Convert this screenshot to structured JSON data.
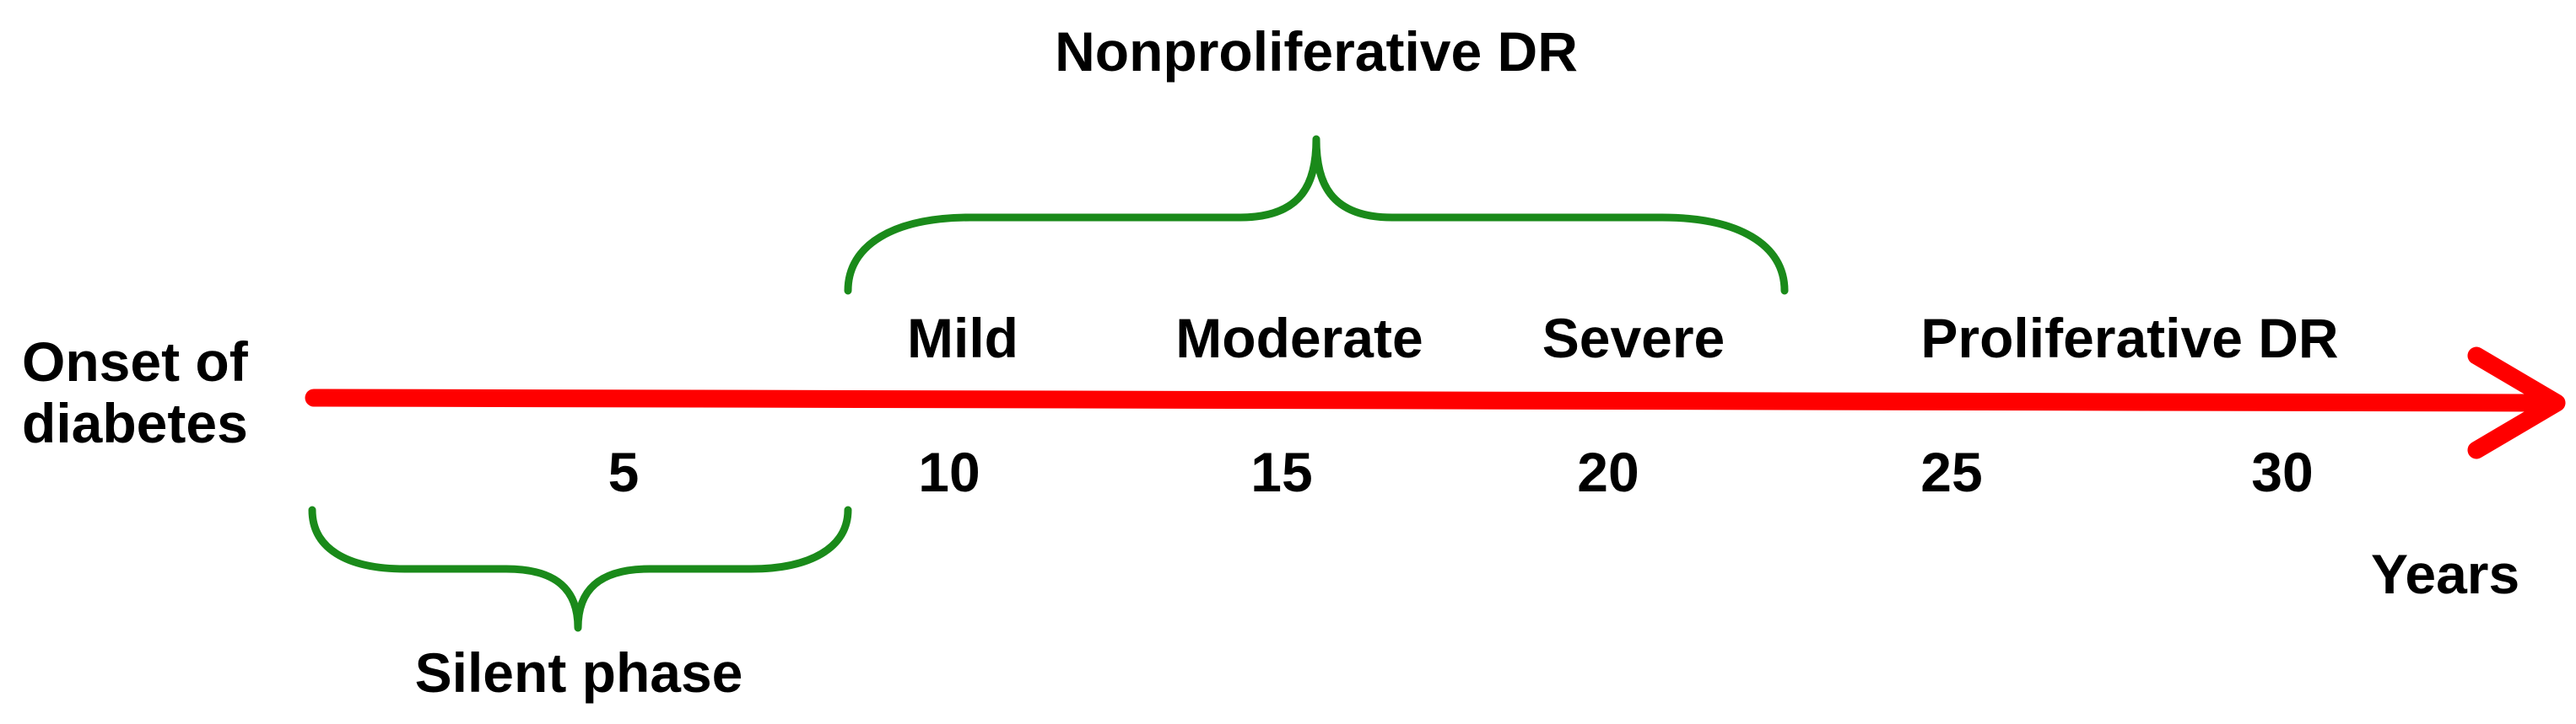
{
  "colors": {
    "axis": "#ff0000",
    "brace": "#1a8a1a",
    "text": "#000000",
    "background": "#ffffff"
  },
  "start_label": {
    "line1": "Onset of",
    "line2": "diabetes"
  },
  "axis_unit": "Years",
  "ticks": [
    "5",
    "10",
    "15",
    "20",
    "25",
    "30"
  ],
  "stages": {
    "mild": "Mild",
    "moderate": "Moderate",
    "severe": "Severe",
    "proliferative": "Proliferative DR"
  },
  "braces": {
    "nonproliferative": "Nonproliferative DR",
    "silent": "Silent phase"
  }
}
